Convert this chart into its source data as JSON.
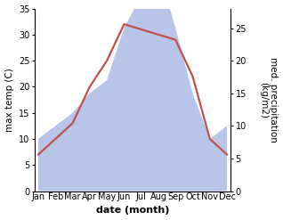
{
  "months": [
    "Jan",
    "Feb",
    "Mar",
    "Apr",
    "May",
    "Jun",
    "Jul",
    "Aug",
    "Sep",
    "Oct",
    "Nov",
    "Dec"
  ],
  "temperature": [
    7,
    10,
    13,
    20,
    25,
    32,
    31,
    30,
    29,
    22,
    10,
    7
  ],
  "precipitation": [
    8,
    10,
    12,
    15,
    17,
    25,
    30,
    34,
    25,
    15,
    8,
    10
  ],
  "temp_color": "#c0504d",
  "precip_fill_color": "#b8c4e8",
  "background_color": "#ffffff",
  "xlabel": "date (month)",
  "ylabel_left": "max temp (C)",
  "ylabel_right": "med. precipitation\n(kg/m2)",
  "ylim_left": [
    0,
    35
  ],
  "ylim_right": [
    0,
    28
  ],
  "yticks_left": [
    0,
    5,
    10,
    15,
    20,
    25,
    30,
    35
  ],
  "yticks_right": [
    0,
    5,
    10,
    15,
    20,
    25
  ],
  "xlabel_fontsize": 8,
  "ylabel_fontsize": 7.5,
  "tick_fontsize": 7
}
